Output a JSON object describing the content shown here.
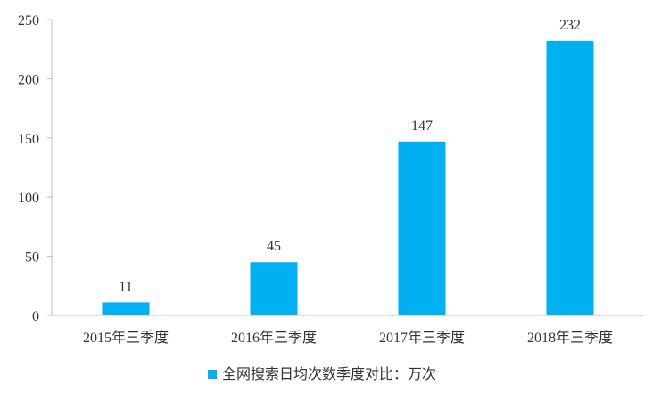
{
  "chart_data": {
    "type": "bar",
    "categories": [
      "2015年三季度",
      "2016年三季度",
      "2017年三季度",
      "2018年三季度"
    ],
    "series": [
      {
        "name": "全网搜索日均次数季度对比：万次",
        "values": [
          11,
          45,
          147,
          232
        ],
        "color": "#00B0F0"
      }
    ],
    "ylim": [
      0,
      250
    ],
    "yticks": [
      0,
      50,
      100,
      150,
      200,
      250
    ],
    "grid": false,
    "data_labels": true,
    "legend_position": "bottom"
  }
}
